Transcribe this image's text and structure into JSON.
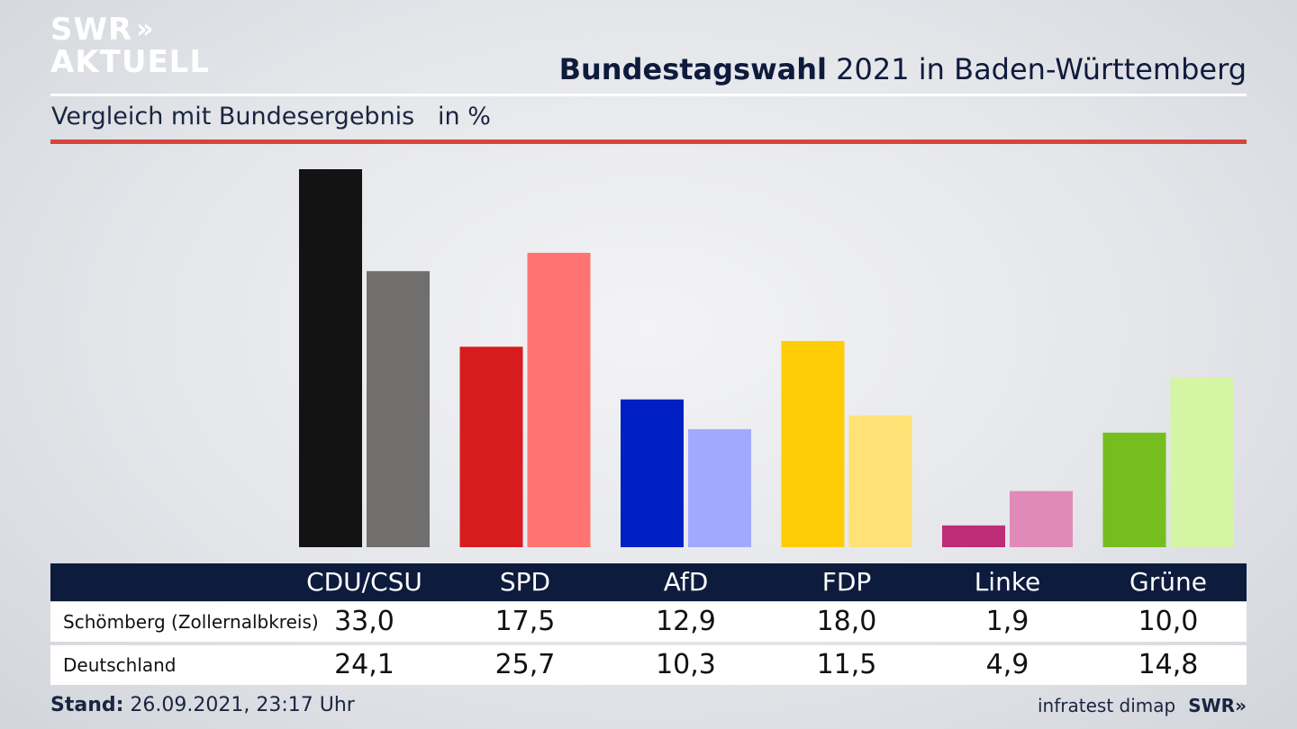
{
  "brand": {
    "line1": "SWR",
    "line2": "AKTUELL",
    "chevrons": "»",
    "footer_brand": "SWR",
    "footer_chevrons": "»"
  },
  "header": {
    "title_bold": "Bundestagswahl",
    "title_rest": " 2021 in Baden-Württemberg",
    "subtitle": "Vergleich mit Bundesergebnis   in %"
  },
  "colors": {
    "local": [
      "#131313",
      "#d71c1e",
      "#0120c4",
      "#ffcd05",
      "#bd2d77",
      "#76bd20"
    ],
    "national": [
      "#706f6e",
      "#ff7470",
      "#9faaff",
      "#ffe176",
      "#e08ab8",
      "#d5f5a4"
    ],
    "accent_red": "#d6463a",
    "header_bg": "#0d1b3d"
  },
  "chart_data": {
    "type": "bar",
    "categories": [
      "CDU/CSU",
      "SPD",
      "AfD",
      "FDP",
      "Linke",
      "Grüne"
    ],
    "series": [
      {
        "name": "Schömberg (Zollernalbkreis)",
        "values": [
          33.0,
          17.5,
          12.9,
          18.0,
          1.9,
          10.0
        ]
      },
      {
        "name": "Deutschland",
        "values": [
          24.1,
          25.7,
          10.3,
          11.5,
          4.9,
          14.8
        ]
      }
    ],
    "value_labels": [
      [
        "33,0",
        "17,5",
        "12,9",
        "18,0",
        "1,9",
        "10,0"
      ],
      [
        "24,1",
        "25,7",
        "10,3",
        "11,5",
        "4,9",
        "14,8"
      ]
    ],
    "ylim": [
      0,
      33.0
    ],
    "grid": false
  },
  "footer": {
    "stand_label": "Stand:",
    "stand_value": " 26.09.2021, 23:17 Uhr",
    "source": "infratest dimap"
  }
}
